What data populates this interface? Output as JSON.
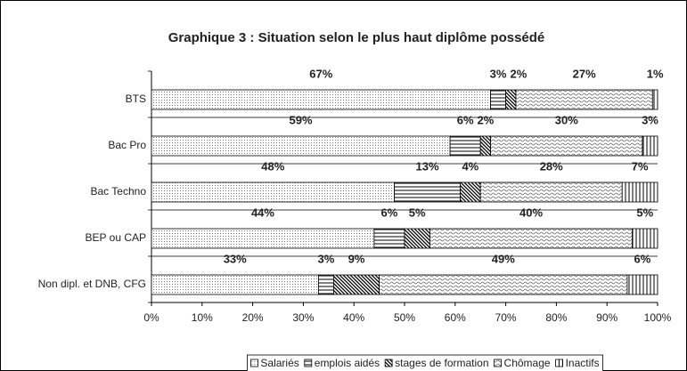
{
  "chart_data": {
    "type": "stacked-barh",
    "title": "Graphique 3 : Situation selon le plus haut diplôme possédé",
    "categories": [
      "BTS",
      "Bac Pro",
      "Bac Techno",
      "BEP ou CAP",
      "Non dipl. et DNB, CFG"
    ],
    "series": [
      {
        "name": "Salariés",
        "pattern": "dots",
        "color": "#000000",
        "values": [
          67,
          59,
          48,
          44,
          33
        ],
        "value_labels": [
          "67%",
          "59%",
          "48%",
          "44%",
          "33%"
        ]
      },
      {
        "name": "emplois aidés",
        "pattern": "horizontal",
        "color": "#000000",
        "values": [
          3,
          6,
          13,
          6,
          3
        ],
        "value_labels": [
          "3%",
          "6%",
          "13%",
          "6%",
          "3%"
        ]
      },
      {
        "name": "stages de formation",
        "pattern": "diagonal",
        "color": "#000000",
        "values": [
          2,
          2,
          4,
          5,
          9
        ],
        "value_labels": [
          "2%",
          "2%",
          "4%",
          "5%",
          "9%"
        ]
      },
      {
        "name": "Chômage",
        "pattern": "wave",
        "color": "#000000",
        "values": [
          27,
          30,
          28,
          40,
          49
        ],
        "value_labels": [
          "27%",
          "30%",
          "28%",
          "40%",
          "49%"
        ]
      },
      {
        "name": "Inactifs",
        "pattern": "vertical",
        "color": "#000000",
        "values": [
          1,
          3,
          7,
          5,
          6
        ],
        "value_labels": [
          "1%",
          "3%",
          "7%",
          "5%",
          "6%"
        ]
      }
    ],
    "xlim": [
      0,
      100
    ],
    "xticks": [
      {
        "value": 0,
        "label": "0%"
      },
      {
        "value": 10,
        "label": "10%"
      },
      {
        "value": 20,
        "label": "20%"
      },
      {
        "value": 30,
        "label": "30%"
      },
      {
        "value": 40,
        "label": "40%"
      },
      {
        "value": 50,
        "label": "50%"
      },
      {
        "value": 60,
        "label": "60%"
      },
      {
        "value": 70,
        "label": "70%"
      },
      {
        "value": 80,
        "label": "80%"
      },
      {
        "value": 90,
        "label": "90%"
      },
      {
        "value": 100,
        "label": "100%"
      }
    ],
    "legend": "bottom"
  }
}
